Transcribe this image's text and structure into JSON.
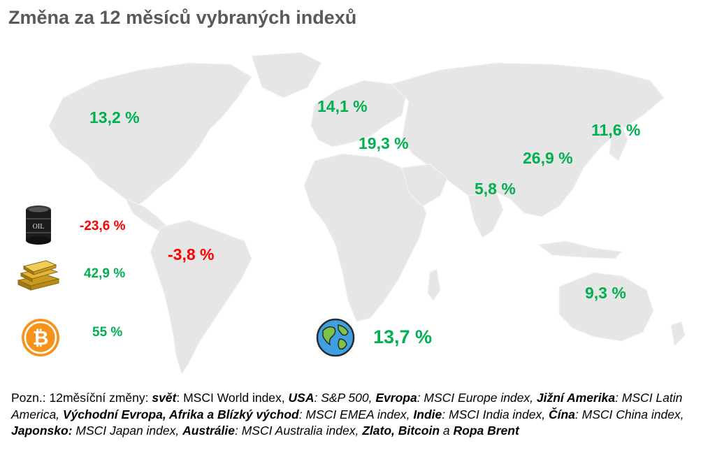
{
  "title": "Změna za 12 měsíců vybraných indexů",
  "colors": {
    "positive": "#00b050",
    "negative": "#ff0000",
    "map_land": "#e8e8e8",
    "title": "#595959"
  },
  "regions": {
    "usa": "13,2 %",
    "evropa": "14,1 %",
    "emea": "19,3 %",
    "japonsko": "11,6 %",
    "cina": "26,9 %",
    "indie": "5,8 %",
    "latinska_amerika": "-3,8 %",
    "australie": "9,3 %",
    "svet": "13,7 %"
  },
  "commodities": {
    "ropa": {
      "icon": "oil-barrel-icon",
      "icon_label": "OIL",
      "value": "-23,6 %"
    },
    "zlato": {
      "icon": "gold-bars-icon",
      "value": "42,9 %"
    },
    "bitcoin": {
      "icon": "bitcoin-icon",
      "value": "55 %"
    }
  },
  "world_icon": "globe-icon",
  "note": {
    "prefix": "Pozn.: 12měsíční změny: ",
    "svet_label": "svět",
    "svet_text": ": MSCI World index, ",
    "usa_label": "USA",
    "usa_text": ": S&P 500, ",
    "evropa_label": "Evropa",
    "evropa_text": ": MSCI Europe index, ",
    "jizni_label": "Jižní Amerika",
    "jizni_text": ": MSCI Latin America, ",
    "emea_label": "Východní Evropa, Afrika a Blízký východ",
    "emea_text": ": MSCI EMEA index, ",
    "indie_label": "Indie",
    "indie_text": ": MSCI India index, ",
    "cina_label": "Čína",
    "cina_text": ": MSCI China index, ",
    "japonsko_label": "Japonsko:",
    "japonsko_text": " MSCI Japan index, ",
    "australie_label": "Austrálie",
    "australie_text": ": MSCI Australia index, ",
    "zlato_label": "Zlato, Bitcoin",
    "a_text": " a ",
    "ropa_label": "Ropa Brent"
  }
}
